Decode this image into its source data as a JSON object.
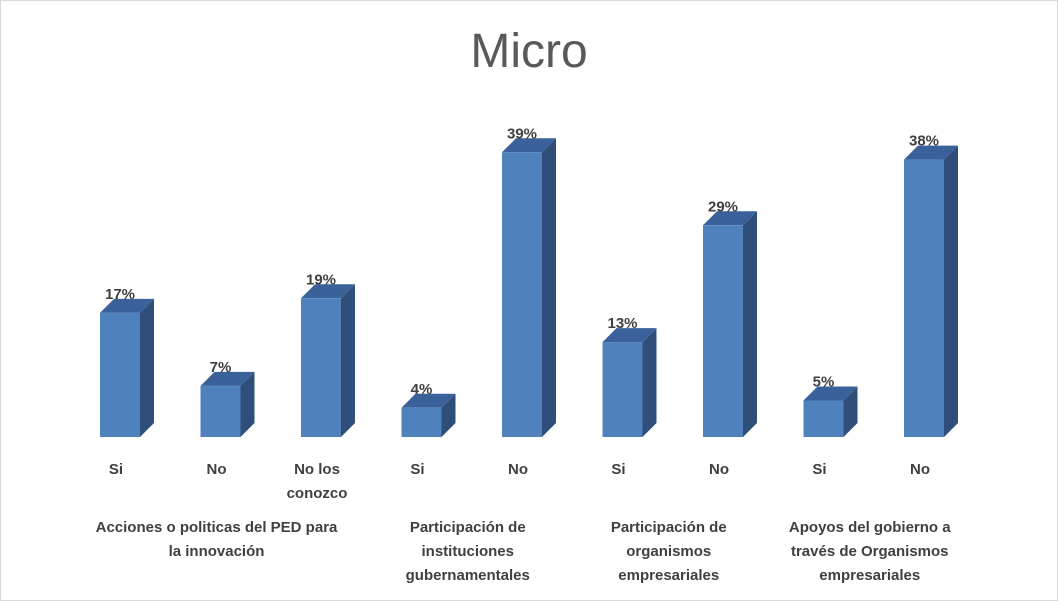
{
  "chart_data": {
    "type": "bar",
    "title": "Micro",
    "bar_style": "3d-column",
    "colors": {
      "front": "#4f81bd",
      "side": "#2f4f7a",
      "top": "#3a619a",
      "text": "#404040",
      "title": "#595959"
    },
    "value_suffix": "%",
    "categories": [
      {
        "label": [
          "Si"
        ],
        "value": 17
      },
      {
        "label": [
          "No"
        ],
        "value": 7
      },
      {
        "label": [
          "No los",
          "conozco"
        ],
        "value": 19
      },
      {
        "label": [
          "Si"
        ],
        "value": 4
      },
      {
        "label": [
          "No"
        ],
        "value": 39
      },
      {
        "label": [
          "Si"
        ],
        "value": 13
      },
      {
        "label": [
          "No"
        ],
        "value": 29
      },
      {
        "label": [
          "Si"
        ],
        "value": 5
      },
      {
        "label": [
          "No"
        ],
        "value": 38
      }
    ],
    "groups": [
      {
        "label": [
          "Acciones o politicas del PED para",
          "la innovación"
        ],
        "categories": [
          0,
          1,
          2
        ]
      },
      {
        "label": [
          "Participación de",
          "instituciones",
          "gubernamentales"
        ],
        "categories": [
          3,
          4
        ]
      },
      {
        "label": [
          "Participación de",
          "organismos",
          "empresariales"
        ],
        "categories": [
          5,
          6
        ]
      },
      {
        "label": [
          "Apoyos del gobierno a",
          "través de Organismos",
          "empresariales"
        ],
        "categories": [
          7,
          8
        ]
      }
    ],
    "ylim": [
      0,
      39
    ],
    "grid": false,
    "legend": "none"
  }
}
